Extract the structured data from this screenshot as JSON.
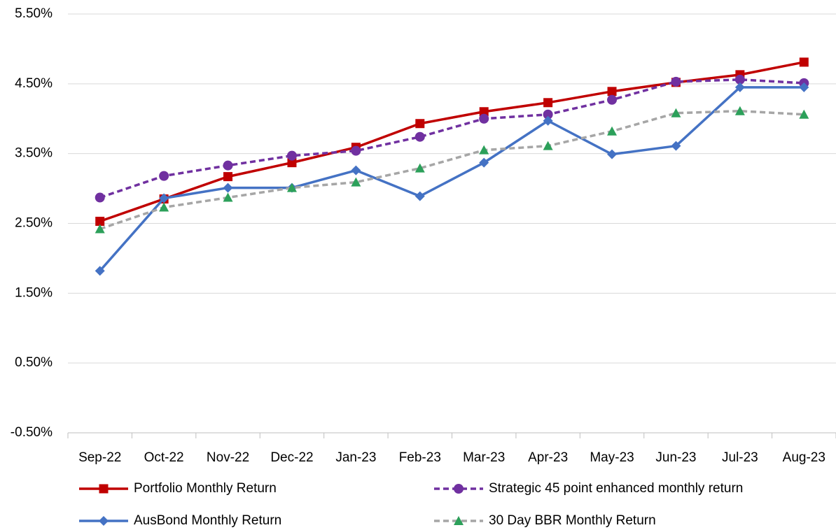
{
  "chart_data": {
    "type": "line",
    "categories": [
      "Sep-22",
      "Oct-22",
      "Nov-22",
      "Dec-22",
      "Jan-23",
      "Feb-23",
      "Mar-23",
      "Apr-23",
      "May-23",
      "Jun-23",
      "Jul-23",
      "Aug-23"
    ],
    "series": [
      {
        "name": "Portfolio Monthly Return",
        "color": "#c00000",
        "marker": "square",
        "marker_color": "#c00000",
        "dashed": false,
        "values": [
          2.53,
          2.85,
          3.17,
          3.37,
          3.59,
          3.93,
          4.1,
          4.23,
          4.39,
          4.52,
          4.63,
          4.81
        ]
      },
      {
        "name": "Strategic 45 point enhanced monthly return",
        "color": "#7030a0",
        "marker": "circle",
        "marker_color": "#7030a0",
        "dashed": true,
        "values": [
          2.87,
          3.18,
          3.33,
          3.47,
          3.54,
          3.74,
          4.0,
          4.06,
          4.27,
          4.53,
          4.56,
          4.51
        ]
      },
      {
        "name": "AusBond Monthly Return",
        "color": "#4472c4",
        "marker": "diamond",
        "marker_color": "#4472c4",
        "dashed": false,
        "values": [
          1.82,
          2.86,
          3.01,
          3.01,
          3.26,
          2.89,
          3.37,
          3.97,
          3.49,
          3.61,
          4.45,
          4.45
        ]
      },
      {
        "name": "30 Day BBR Monthly Return",
        "color": "#a6a6a6",
        "marker": "triangle",
        "marker_color": "#2ca05a",
        "dashed": true,
        "values": [
          2.42,
          2.73,
          2.87,
          3.01,
          3.09,
          3.29,
          3.55,
          3.61,
          3.82,
          4.08,
          4.11,
          4.06
        ]
      }
    ],
    "ylim": [
      -0.5,
      5.5
    ],
    "yticks": [
      {
        "value": -0.5,
        "label": "-0.50%"
      },
      {
        "value": 0.5,
        "label": "0.50%"
      },
      {
        "value": 1.5,
        "label": "1.50%"
      },
      {
        "value": 2.5,
        "label": "2.50%"
      },
      {
        "value": 3.5,
        "label": "3.50%"
      },
      {
        "value": 4.5,
        "label": "4.50%"
      },
      {
        "value": 5.5,
        "label": "5.50%"
      }
    ],
    "grid": true,
    "legend": "bottom"
  }
}
